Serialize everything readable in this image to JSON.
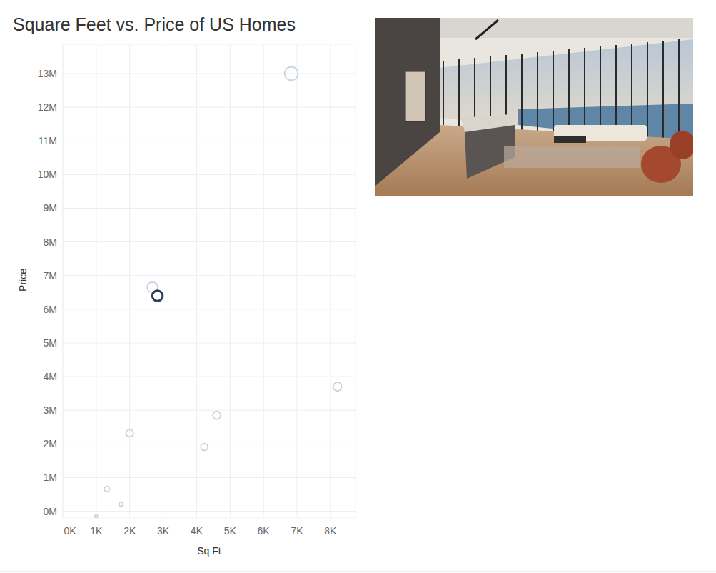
{
  "chart_data": {
    "type": "scatter",
    "title": "Square Feet vs. Price of US Homes",
    "x_label": "Sq Ft",
    "y_label": "Price",
    "x": [
      6830,
      2680,
      2830,
      8210,
      4600,
      2000,
      4230,
      1320,
      1740,
      1000
    ],
    "values": [
      13000000,
      6650000,
      6400000,
      3700000,
      2850000,
      2320000,
      1910000,
      660000,
      210000,
      -150000
    ],
    "colors": [
      "#c9d3e0",
      "#c9d3e0",
      "#2c3e5a",
      "#c9d3e0",
      "#c9d3e0",
      "#c9d3e0",
      "#c9d3e0",
      "#c9d3e0",
      "#c9d3e0",
      "#c9d3e0"
    ],
    "marker": "hollow-circle",
    "xlim": [
      0,
      8750
    ],
    "ylim": [
      -200000,
      13870000
    ],
    "xticks": [
      {
        "value": 0,
        "label": "0K"
      },
      {
        "value": 1000,
        "label": "1K"
      },
      {
        "value": 2000,
        "label": "2K"
      },
      {
        "value": 3000,
        "label": "3K"
      },
      {
        "value": 4000,
        "label": "4K"
      },
      {
        "value": 5000,
        "label": "5K"
      },
      {
        "value": 6000,
        "label": "6K"
      },
      {
        "value": 7000,
        "label": "7K"
      },
      {
        "value": 8000,
        "label": "8K"
      }
    ],
    "yticks": [
      {
        "value": 0,
        "label": "0M"
      },
      {
        "value": 1000000,
        "label": "1M"
      },
      {
        "value": 2000000,
        "label": "2M"
      },
      {
        "value": 3000000,
        "label": "3M"
      },
      {
        "value": 4000000,
        "label": "4M"
      },
      {
        "value": 5000000,
        "label": "5M"
      },
      {
        "value": 6000000,
        "label": "6M"
      },
      {
        "value": 7000000,
        "label": "7M"
      },
      {
        "value": 8000000,
        "label": "8M"
      },
      {
        "value": 9000000,
        "label": "9M"
      },
      {
        "value": 10000000,
        "label": "10M"
      },
      {
        "value": 11000000,
        "label": "11M"
      },
      {
        "value": 12000000,
        "label": "12M"
      },
      {
        "value": 13000000,
        "label": "13M"
      }
    ],
    "grid": true
  }
}
